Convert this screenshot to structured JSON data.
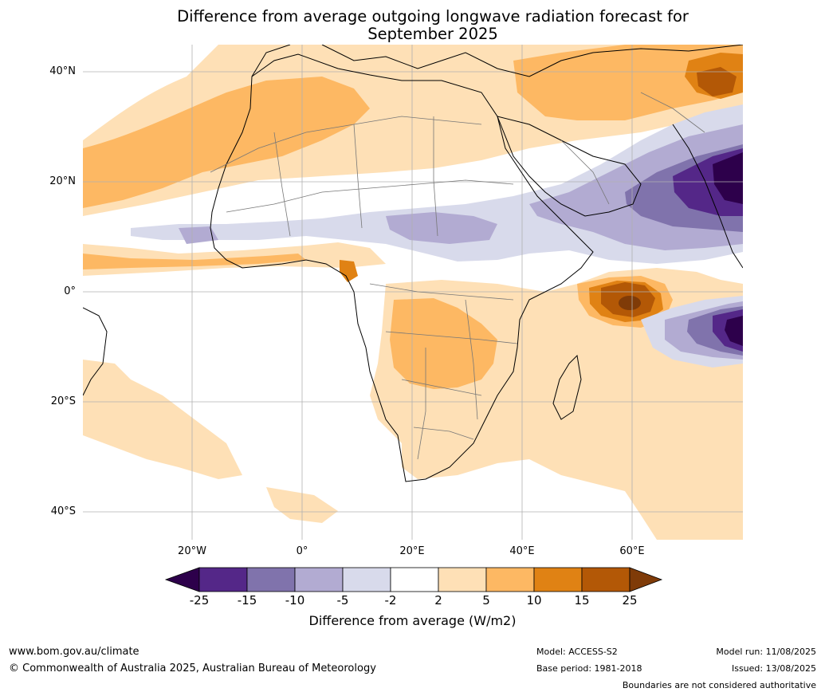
{
  "title": {
    "line1": "Difference from average outgoing longwave radiation forecast for",
    "line2": "September 2025"
  },
  "map": {
    "lat_labels": [
      "40°N",
      "20°N",
      "0°",
      "20°S",
      "40°S"
    ],
    "lon_labels": [
      "20°W",
      "0°",
      "20°E",
      "40°E",
      "60°E"
    ],
    "region": "Africa, Arabia and western Indian Ocean",
    "colors": {
      "neg_25": "#2d004b",
      "neg_15": "#542788",
      "neg_10": "#8073ac",
      "neg_5": "#b2abd2",
      "neg_2": "#d8daeb",
      "neutral": "#ffffff",
      "pos_2": "#fee0b6",
      "pos_5": "#fdb863",
      "pos_10": "#e08214",
      "pos_15": "#b35806",
      "pos_25": "#7f3b08"
    }
  },
  "colorbar": {
    "ticks": [
      "-25",
      "-15",
      "-10",
      "-5",
      "-2",
      "2",
      "5",
      "10",
      "15",
      "25"
    ],
    "label": "Difference from average (W/m2)"
  },
  "footer": {
    "website": "www.bom.gov.au/climate",
    "copyright": "© Commonwealth of Australia 2025, Australian Bureau of Meteorology",
    "model": "Model: ACCESS-S2",
    "base_period": "Base period: 1981-2018",
    "model_run": "Model run: 11/08/2025",
    "issued": "Issued: 13/08/2025",
    "disclaimer": "Boundaries are not considered authoritative"
  }
}
